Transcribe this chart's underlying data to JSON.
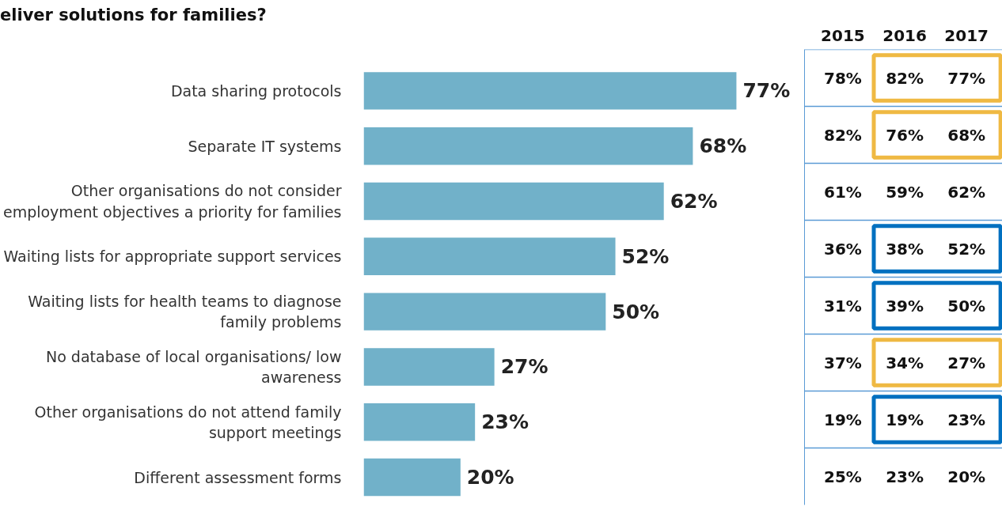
{
  "chart_data": [
    {
      "type": "bar",
      "orientation": "horizontal",
      "title": "eliver solutions for families?",
      "categories": [
        "Data sharing protocols",
        "Separate IT systems",
        "Other organisations do not consider\nemployment objectives a priority for families",
        "Waiting lists for appropriate support services",
        "Waiting lists for health teams to diagnose\nfamily problems",
        "No database of local organisations/ low\nawareness",
        "Other organisations do not attend family\nsupport meetings",
        "Different assessment forms"
      ],
      "values": [
        77,
        68,
        62,
        52,
        50,
        27,
        23,
        20
      ],
      "value_labels": [
        "77%",
        "68%",
        "62%",
        "52%",
        "50%",
        "27%",
        "23%",
        "20%"
      ],
      "color": "#71b1c9",
      "grid": false
    },
    {
      "type": "other",
      "categories": [
        "2015",
        "2016",
        "2017"
      ],
      "cell_labels": [
        [
          "78%",
          "82%",
          "77%"
        ],
        [
          "82%",
          "76%",
          "68%"
        ],
        [
          "61%",
          "59%",
          "62%"
        ],
        [
          "36%",
          "38%",
          "52%"
        ],
        [
          "31%",
          "39%",
          "50%"
        ],
        [
          "37%",
          "34%",
          "27%"
        ],
        [
          "19%",
          "19%",
          "23%"
        ],
        [
          "25%",
          "23%",
          "20%"
        ]
      ]
    }
  ]
}
